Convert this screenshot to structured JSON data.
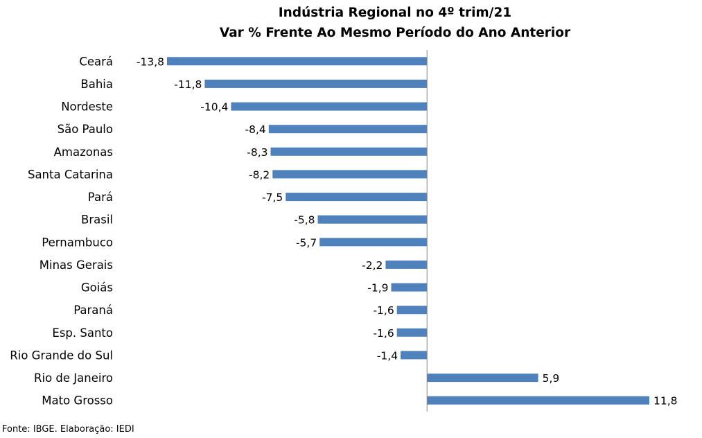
{
  "chart_data": {
    "type": "bar",
    "orientation": "horizontal",
    "title": "Indústria Regional no 4º trim/21",
    "subtitle": "Var % Frente Ao Mesmo Período do Ano Anterior",
    "categories": [
      "Ceará",
      "Bahia",
      "Nordeste",
      "São Paulo",
      "Amazonas",
      "Santa Catarina",
      "Pará",
      "Brasil",
      "Pernambuco",
      "Minas Gerais",
      "Goiás",
      "Paraná",
      "Esp. Santo",
      "Rio Grande do Sul",
      "Rio de Janeiro",
      "Mato Grosso"
    ],
    "values": [
      -13.8,
      -11.8,
      -10.4,
      -8.4,
      -8.3,
      -8.2,
      -7.5,
      -5.8,
      -5.7,
      -2.2,
      -1.9,
      -1.6,
      -1.6,
      -1.4,
      5.9,
      11.8
    ],
    "value_labels": [
      "-13,8",
      "-11,8",
      "-10,4",
      "-8,4",
      "-8,3",
      "-8,2",
      "-7,5",
      "-5,8",
      "-5,7",
      "-2,2",
      "-1,9",
      "-1,6",
      "-1,6",
      "-1,4",
      "5,9",
      "11,8"
    ],
    "xlim": [
      -13.8,
      11.8
    ],
    "grid": false,
    "legend": "none",
    "bar_color": "#4f81bd",
    "axis_color": "#868686"
  },
  "source_text": "Fonte: IBGE. Elaboração: IEDI"
}
